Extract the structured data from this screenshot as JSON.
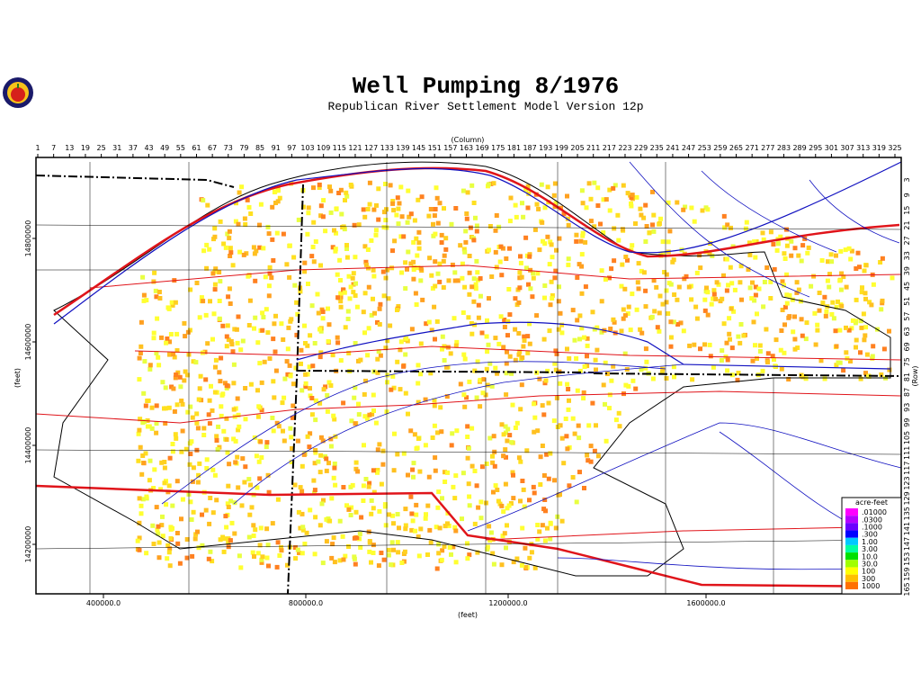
{
  "header": {
    "title": "Well Pumping  8/1976",
    "subtitle": "Republican River Settlement Model Version 12p"
  },
  "map": {
    "column_label": "(Column)",
    "columns": [
      1,
      7,
      13,
      19,
      25,
      31,
      37,
      43,
      49,
      55,
      61,
      67,
      73,
      79,
      85,
      91,
      97,
      103,
      109,
      115,
      121,
      127,
      133,
      139,
      145,
      151,
      157,
      163,
      169,
      175,
      181,
      187,
      193,
      199,
      205,
      211,
      217,
      223,
      229,
      235,
      241,
      247,
      253,
      259,
      265,
      271,
      277,
      283,
      289,
      295,
      301,
      307,
      313,
      319,
      325
    ],
    "row_label": "(Row)",
    "rows": [
      3,
      9,
      15,
      21,
      27,
      33,
      39,
      45,
      51,
      57,
      63,
      69,
      75,
      81,
      87,
      93,
      99,
      105,
      111,
      117,
      123,
      129,
      135,
      141,
      147,
      153,
      159,
      165
    ],
    "x_label": "(feet)",
    "x_ticks": [
      "400000.0",
      "800000.0",
      "1200000.0",
      "1600000.0"
    ],
    "y_label": "(feet)",
    "y_ticks": [
      "14200000",
      "14400000",
      "14600000",
      "14800000"
    ]
  },
  "legend": {
    "title": "acre-feet",
    "entries": [
      ".01000",
      ".0300",
      ".1000",
      ".300",
      "1.00",
      "3.00",
      "10.0",
      "30.0",
      "100",
      "300",
      "1000"
    ]
  }
}
